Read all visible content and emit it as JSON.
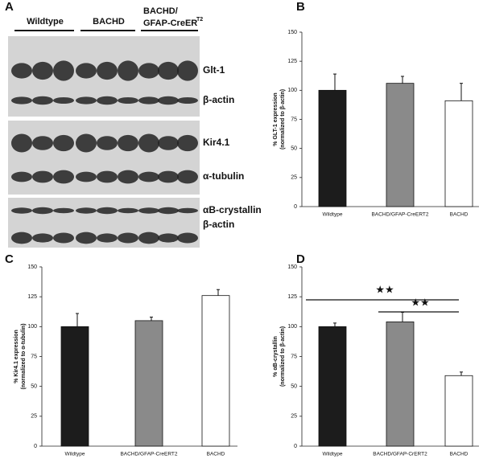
{
  "blots": {
    "panel": "A",
    "groups": [
      "Wildtype",
      "BACHD",
      "BACHD/",
      "GFAP-CreER",
      "T2"
    ],
    "rows": [
      "Glt-1",
      "β-actin",
      "Kir4.1",
      "α-tubulin",
      "αB-crystallin",
      "β-actin"
    ]
  },
  "chart_data": [
    {
      "type": "bar",
      "panel": "B",
      "y_label": [
        "% GLT-1 expression",
        "(normalized to β-actin)"
      ],
      "categories": [
        "Wildtype",
        "BACHD/GFAP-CreERT2",
        "BACHD"
      ],
      "values": [
        100,
        106,
        91
      ],
      "errors": [
        14,
        6,
        15
      ],
      "colors": [
        "#1c1c1c",
        "#8a8a8a",
        "#ffffff"
      ],
      "ylim": [
        0,
        150
      ],
      "yticks": [
        0,
        25,
        50,
        75,
        100,
        125,
        150
      ]
    },
    {
      "type": "bar",
      "panel": "C",
      "y_label": [
        "% Kir4.1 expression",
        "(normalized to α-tubulin)"
      ],
      "categories": [
        "Wildtype",
        "BACHD/GFAP-CreERT2",
        "BACHD"
      ],
      "values": [
        100,
        105,
        126
      ],
      "errors": [
        11,
        3,
        5
      ],
      "colors": [
        "#1c1c1c",
        "#8a8a8a",
        "#ffffff"
      ],
      "ylim": [
        0,
        150
      ],
      "yticks": [
        0,
        25,
        50,
        75,
        100,
        125,
        150
      ]
    },
    {
      "type": "bar",
      "panel": "D",
      "y_label": [
        "% αB-crystallin",
        "(normalized to β-actin)"
      ],
      "categories": [
        "Wildtype",
        "BACHD/GFAP-CrERT2",
        "BACHD"
      ],
      "values": [
        100,
        104,
        59
      ],
      "errors": [
        3,
        8,
        3
      ],
      "colors": [
        "#1c1c1c",
        "#8a8a8a",
        "#ffffff"
      ],
      "ylim": [
        0,
        150
      ],
      "yticks": [
        0,
        25,
        50,
        75,
        100,
        125,
        150
      ],
      "annotations": [
        "★★",
        "★★"
      ]
    }
  ]
}
